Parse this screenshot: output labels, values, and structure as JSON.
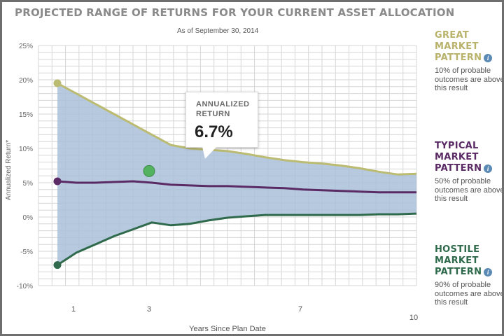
{
  "chart_data": {
    "type": "area",
    "title": "PROJECTED RANGE OF RETURNS FOR YOUR CURRENT ASSET ALLOCATION",
    "subtitle": "As of September 30, 2014",
    "xlabel": "Years Since Plan Date",
    "ylabel": "Annualized Return*",
    "xlim": [
      0,
      10
    ],
    "ylim": [
      -10,
      25
    ],
    "x_ticks": [
      {
        "value": 1,
        "label": "1"
      },
      {
        "value": 3,
        "label": "3"
      },
      {
        "value": 7,
        "label": "7"
      },
      {
        "value": 10,
        "label": "10"
      }
    ],
    "y_ticks": [
      {
        "value": 25,
        "label": "25%"
      },
      {
        "value": 20,
        "label": "20%"
      },
      {
        "value": 15,
        "label": "15%"
      },
      {
        "value": 10,
        "label": "10%"
      },
      {
        "value": 5,
        "label": "5%"
      },
      {
        "value": 0,
        "label": "0%"
      },
      {
        "value": -5,
        "label": "-5%"
      },
      {
        "value": -10,
        "label": "-10%"
      }
    ],
    "grid": true,
    "series": [
      {
        "name": "GREAT MARKET PATTERN",
        "color": "#bcbb72",
        "x": [
          0.5,
          1.0,
          1.5,
          2.0,
          2.5,
          3.0,
          3.5,
          4.0,
          4.5,
          5.0,
          5.5,
          6.0,
          6.5,
          7.0,
          7.5,
          8.0,
          8.5,
          9.0,
          9.5,
          10.0
        ],
        "y": [
          19.5,
          18.0,
          16.5,
          15.0,
          13.5,
          12.0,
          10.5,
          10.0,
          9.8,
          9.6,
          9.2,
          8.7,
          8.3,
          8.0,
          7.8,
          7.5,
          7.1,
          6.6,
          6.2,
          6.3
        ]
      },
      {
        "name": "TYPICAL MARKET PATTERN",
        "color": "#5a2a65",
        "x": [
          0.5,
          1.0,
          1.5,
          2.0,
          2.5,
          3.0,
          3.5,
          4.0,
          4.5,
          5.0,
          5.5,
          6.0,
          6.5,
          7.0,
          7.5,
          8.0,
          8.5,
          9.0,
          9.5,
          10.0
        ],
        "y": [
          5.2,
          5.0,
          5.0,
          5.1,
          5.2,
          5.0,
          4.7,
          4.6,
          4.5,
          4.5,
          4.4,
          4.3,
          4.2,
          4.0,
          3.9,
          3.8,
          3.7,
          3.6,
          3.6,
          3.6
        ]
      },
      {
        "name": "HOSTILE MARKET PATTERN",
        "color": "#2e6a4b",
        "x": [
          0.5,
          1.0,
          1.5,
          2.0,
          2.5,
          3.0,
          3.5,
          4.0,
          4.5,
          5.0,
          5.5,
          6.0,
          6.5,
          7.0,
          7.5,
          8.0,
          8.5,
          9.0,
          9.5,
          10.0
        ],
        "y": [
          -7.0,
          -5.2,
          -4.0,
          -2.8,
          -1.8,
          -0.8,
          -1.2,
          -1.0,
          -0.5,
          -0.1,
          0.1,
          0.3,
          0.3,
          0.3,
          0.3,
          0.3,
          0.3,
          0.4,
          0.4,
          0.5
        ]
      }
    ],
    "range_fill": "#a9bfd8",
    "highlight": {
      "x": 3.0,
      "y": 6.7,
      "color": "#52b25f"
    }
  },
  "callout": {
    "label": "ANNUALIZED RETURN",
    "value": "6.7%"
  },
  "legend": [
    {
      "title": "GREAT MARKET PATTERN",
      "color": "#b8b26a",
      "desc": [
        "10% of probable",
        "outcomes are above",
        "this result"
      ]
    },
    {
      "title": "TYPICAL MARKET PATTERN",
      "color": "#5a2a65",
      "desc": [
        "50% of probable",
        "outcomes are above",
        "this result"
      ]
    },
    {
      "title": "HOSTILE MARKET PATTERN",
      "color": "#2e6a4b",
      "desc": [
        "90% of probable",
        "outcomes are above",
        "this result"
      ]
    }
  ],
  "info_icon_glyph": "i"
}
